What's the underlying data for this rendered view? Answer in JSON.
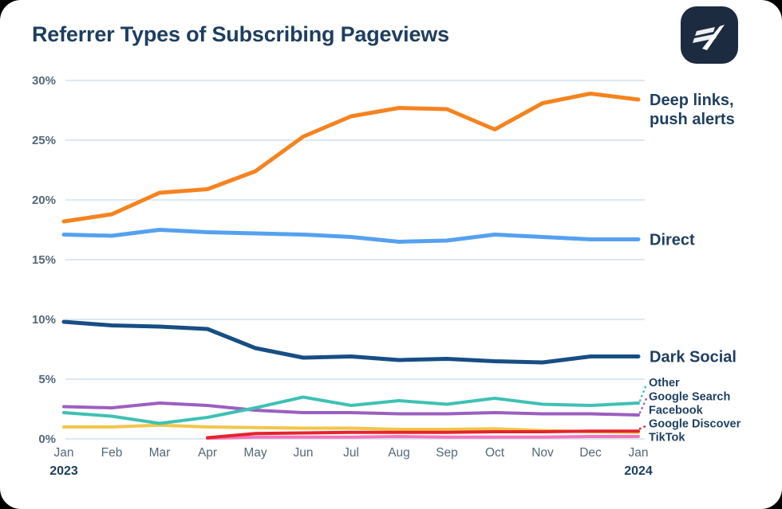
{
  "title": "Referrer Types of Subscribing Pageviews",
  "logo": {
    "name": "chartbeat-logo"
  },
  "colors": {
    "title_text": "#1E3E5F",
    "label_text": "#1E3E5F",
    "axis_text": "#54677B",
    "grid": "#DDE9F2",
    "card_bg": "#FFFFFF",
    "logo_bg": "#1C2B40"
  },
  "chart_data": {
    "type": "line",
    "title": "Referrer Types of Subscribing Pageviews",
    "x_labels": [
      "Jan",
      "Feb",
      "Mar",
      "Apr",
      "May",
      "Jun",
      "Jul",
      "Aug",
      "Sep",
      "Oct",
      "Nov",
      "Dec",
      "Jan"
    ],
    "x_year_start": "2023",
    "x_year_end": "2024",
    "ylabel": "",
    "xlabel": "",
    "ylim": [
      0,
      30
    ],
    "y_ticks": [
      0,
      5,
      10,
      15,
      20,
      25,
      30
    ],
    "y_tick_suffix": "%",
    "grid": true,
    "legend_position": "right-edge-labels",
    "series": [
      {
        "name": "Deep links, push alerts",
        "label_lines": [
          "Deep links,",
          "push alerts"
        ],
        "color": "#F5831F",
        "size": "large",
        "values": [
          18.2,
          18.8,
          20.6,
          20.9,
          22.4,
          25.3,
          27.0,
          27.7,
          27.6,
          25.9,
          28.1,
          28.9,
          28.4
        ]
      },
      {
        "name": "Direct",
        "label_lines": [
          "Direct"
        ],
        "color": "#55A1F0",
        "size": "large",
        "values": [
          17.1,
          17.0,
          17.5,
          17.3,
          17.2,
          17.1,
          16.9,
          16.5,
          16.6,
          17.1,
          16.9,
          16.7,
          16.7
        ]
      },
      {
        "name": "Dark Social",
        "label_lines": [
          "Dark Social"
        ],
        "color": "#174E85",
        "size": "large",
        "values": [
          9.8,
          9.5,
          9.4,
          9.2,
          7.6,
          6.8,
          6.9,
          6.6,
          6.7,
          6.5,
          6.4,
          6.9,
          6.9
        ]
      },
      {
        "name": "Other",
        "label_lines": [
          "Other"
        ],
        "color": "#3EC1B3",
        "size": "small",
        "values": [
          2.2,
          1.9,
          1.3,
          1.8,
          2.6,
          3.5,
          2.8,
          3.2,
          2.9,
          3.4,
          2.9,
          2.8,
          3.0
        ]
      },
      {
        "name": "Google Search",
        "label_lines": [
          "Google Search"
        ],
        "color": "#9C5FC0",
        "size": "small",
        "values": [
          2.7,
          2.6,
          3.0,
          2.8,
          2.4,
          2.2,
          2.2,
          2.1,
          2.1,
          2.2,
          2.1,
          2.1,
          2.0
        ]
      },
      {
        "name": "Facebook",
        "label_lines": [
          "Facebook"
        ],
        "color": "#F2C64B",
        "size": "small",
        "values": [
          1.0,
          1.0,
          1.15,
          1.0,
          0.95,
          0.9,
          0.9,
          0.8,
          0.8,
          0.85,
          0.7,
          0.6,
          0.55
        ]
      },
      {
        "name": "Google Discover",
        "label_lines": [
          "Google Discover"
        ],
        "color": "#E4252B",
        "size": "small",
        "values": [
          null,
          null,
          null,
          0.1,
          0.45,
          0.5,
          0.55,
          0.55,
          0.55,
          0.6,
          0.6,
          0.65,
          0.65
        ]
      },
      {
        "name": "TikTok",
        "label_lines": [
          "TikTok"
        ],
        "color": "#F376BE",
        "size": "small",
        "values": [
          null,
          null,
          null,
          0.05,
          0.15,
          0.15,
          0.15,
          0.2,
          0.15,
          0.15,
          0.15,
          0.2,
          0.2
        ]
      }
    ]
  }
}
